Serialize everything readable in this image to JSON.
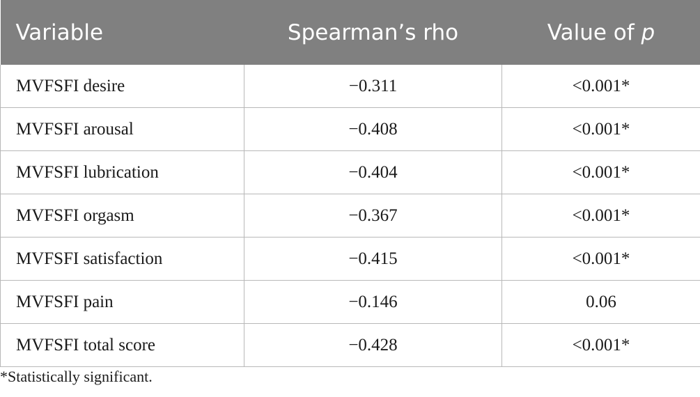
{
  "table": {
    "headers": {
      "variable": "Variable",
      "rho": "Spearman’s rho",
      "p_prefix": "Value of ",
      "p_italic": "p"
    },
    "rows": [
      {
        "variable": "MVFSFI desire",
        "rho": "−0.311",
        "p": "<0.001*"
      },
      {
        "variable": "MVFSFI arousal",
        "rho": "−0.408",
        "p": "<0.001*"
      },
      {
        "variable": "MVFSFI lubrication",
        "rho": "−0.404",
        "p": "<0.001*"
      },
      {
        "variable": "MVFSFI orgasm",
        "rho": "−0.367",
        "p": "<0.001*"
      },
      {
        "variable": "MVFSFI satisfaction",
        "rho": "−0.415",
        "p": "<0.001*"
      },
      {
        "variable": "MVFSFI pain",
        "rho": "−0.146",
        "p": "0.06"
      },
      {
        "variable": "MVFSFI total score",
        "rho": "−0.428",
        "p": "<0.001*"
      }
    ]
  },
  "footnote": "*Statistically significant.",
  "colors": {
    "header_bg": "#808080",
    "header_text": "#ffffff",
    "grid": "#b8b8b8"
  }
}
